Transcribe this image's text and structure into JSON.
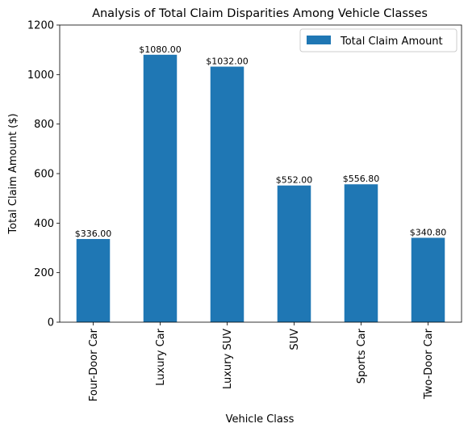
{
  "chart_data": {
    "type": "bar",
    "title": "Analysis of Total Claim Disparities Among Vehicle Classes",
    "xlabel": "Vehicle Class",
    "ylabel": "Total Claim Amount ($)",
    "categories": [
      "Four-Door Car",
      "Luxury Car",
      "Luxury SUV",
      "SUV",
      "Sports Car",
      "Two-Door Car"
    ],
    "series": [
      {
        "name": "Total Claim Amount",
        "values": [
          336.0,
          1080.0,
          1032.0,
          552.0,
          556.8,
          340.8
        ],
        "data_labels": [
          "$336.00",
          "$1080.00",
          "$1032.00",
          "$552.00",
          "$556.80",
          "$340.80"
        ],
        "color": "#1f77b4"
      }
    ],
    "ylim": [
      0,
      1200
    ],
    "yticks": [
      0,
      200,
      400,
      600,
      800,
      1000,
      1200
    ],
    "legend": "top-right",
    "grid": false
  }
}
